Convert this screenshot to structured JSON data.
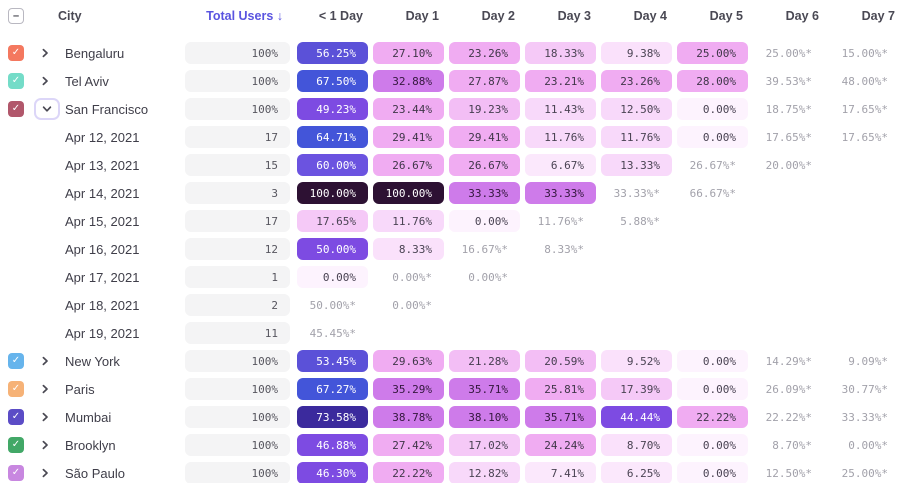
{
  "header": {
    "select_all_glyph": "–",
    "columns": {
      "city": "City",
      "total": "Total Users ↓",
      "days": [
        "< 1 Day",
        "Day 1",
        "Day 2",
        "Day 3",
        "Day 4",
        "Day 5",
        "Day 6",
        "Day 7"
      ]
    }
  },
  "checkmark_glyph": "✓",
  "colors": {
    "sorted_header": "#5a54e0",
    "muted_text": "#a2a1aa",
    "total_pill_bg": "#f4f4f5"
  },
  "scale": [
    {
      "max": 2,
      "bg": "#fdf3fe",
      "fg": "#4a4353"
    },
    {
      "max": 7.5,
      "bg": "#fbe8fc",
      "fg": "#4a4353"
    },
    {
      "max": 10,
      "bg": "#fae1fb",
      "fg": "#4a4353"
    },
    {
      "max": 14,
      "bg": "#f8d9fa",
      "fg": "#4a4353"
    },
    {
      "max": 19,
      "bg": "#f5c9f7",
      "fg": "#4a4353"
    },
    {
      "max": 21.5,
      "bg": "#f3bef5",
      "fg": "#453d4f"
    },
    {
      "max": 30,
      "bg": "#f0acf2",
      "fg": "#3f3648"
    },
    {
      "max": 41,
      "bg": "#ce7bea",
      "fg": "#33173d"
    },
    {
      "max": 52,
      "bg": "#7d4be2",
      "fg": "#ffffff"
    },
    {
      "max": 58,
      "bg": "#5b51d8",
      "fg": "#ffffff"
    },
    {
      "max": 62,
      "bg": "#6b53e0",
      "fg": "#ffffff"
    },
    {
      "max": 70,
      "bg": "#4355d9",
      "fg": "#ffffff"
    },
    {
      "max": 85,
      "bg": "#3b2a9d",
      "fg": "#ffffff"
    },
    {
      "max": 100,
      "bg": "#2d1133",
      "fg": "#ffffff"
    }
  ],
  "rows": [
    {
      "type": "city",
      "name": "Bengaluru",
      "checkbox": "#f4785f",
      "expanded": false,
      "total": "100%",
      "cells": [
        "56.25%",
        "27.10%",
        "23.26%",
        "18.33%",
        "9.38%",
        "25.00%",
        "25.00%*",
        "15.00%*"
      ]
    },
    {
      "type": "city",
      "name": "Tel Aviv",
      "checkbox": "#74dcc8",
      "expanded": false,
      "total": "100%",
      "cells": [
        "67.50%",
        "32.88%",
        "27.87%",
        "23.21%",
        "23.26%",
        "28.00%",
        "39.53%*",
        "48.00%*"
      ]
    },
    {
      "type": "city",
      "name": "San Francisco",
      "checkbox": "#b1576b",
      "expanded": true,
      "total": "100%",
      "cells": [
        "49.23%",
        "23.44%",
        "19.23%",
        "11.43%",
        "12.50%",
        "0.00%",
        "18.75%*",
        "17.65%*"
      ]
    },
    {
      "type": "date",
      "name": "Apr 12, 2021",
      "total": "17",
      "cells": [
        "64.71%",
        "29.41%",
        "29.41%",
        "11.76%",
        "11.76%",
        "0.00%",
        "17.65%*",
        "17.65%*"
      ]
    },
    {
      "type": "date",
      "name": "Apr 13, 2021",
      "total": "15",
      "cells": [
        "60.00%",
        "26.67%",
        "26.67%",
        "6.67%",
        "13.33%",
        "26.67%*",
        "20.00%*",
        ""
      ]
    },
    {
      "type": "date",
      "name": "Apr 14, 2021",
      "total": "3",
      "cells": [
        "100.00%",
        "100.00%",
        "33.33%",
        "33.33%",
        "33.33%*",
        "66.67%*",
        "",
        ""
      ]
    },
    {
      "type": "date",
      "name": "Apr 15, 2021",
      "total": "17",
      "cells": [
        "17.65%",
        "11.76%",
        "0.00%",
        "11.76%*",
        "5.88%*",
        "",
        "",
        ""
      ]
    },
    {
      "type": "date",
      "name": "Apr 16, 2021",
      "total": "12",
      "cells": [
        "50.00%",
        "8.33%",
        "16.67%*",
        "8.33%*",
        "",
        "",
        "",
        ""
      ]
    },
    {
      "type": "date",
      "name": "Apr 17, 2021",
      "total": "1",
      "cells": [
        "0.00%",
        "0.00%*",
        "0.00%*",
        "",
        "",
        "",
        "",
        ""
      ]
    },
    {
      "type": "date",
      "name": "Apr 18, 2021",
      "total": "2",
      "cells": [
        "50.00%*",
        "0.00%*",
        "",
        "",
        "",
        "",
        "",
        ""
      ]
    },
    {
      "type": "date",
      "name": "Apr 19, 2021",
      "total": "11",
      "cells": [
        "45.45%*",
        "",
        "",
        "",
        "",
        "",
        "",
        ""
      ]
    },
    {
      "type": "city",
      "name": "New York",
      "checkbox": "#66b4ec",
      "expanded": false,
      "total": "100%",
      "cells": [
        "53.45%",
        "29.63%",
        "21.28%",
        "20.59%",
        "9.52%",
        "0.00%",
        "14.29%*",
        "9.09%*"
      ]
    },
    {
      "type": "city",
      "name": "Paris",
      "checkbox": "#f6b277",
      "expanded": false,
      "total": "100%",
      "cells": [
        "67.27%",
        "35.29%",
        "35.71%",
        "25.81%",
        "17.39%",
        "0.00%",
        "26.09%*",
        "30.77%*"
      ]
    },
    {
      "type": "city",
      "name": "Mumbai",
      "checkbox": "#5b4cc6",
      "expanded": false,
      "total": "100%",
      "cells": [
        "73.58%",
        "38.78%",
        "38.10%",
        "35.71%",
        "44.44%",
        "22.22%",
        "22.22%*",
        "33.33%*"
      ]
    },
    {
      "type": "city",
      "name": "Brooklyn",
      "checkbox": "#42a867",
      "expanded": false,
      "total": "100%",
      "cells": [
        "46.88%",
        "27.42%",
        "17.02%",
        "24.24%",
        "8.70%",
        "0.00%",
        "8.70%*",
        "0.00%*"
      ]
    },
    {
      "type": "city",
      "name": "São Paulo",
      "checkbox": "#c887e0",
      "expanded": false,
      "total": "100%",
      "cells": [
        "46.30%",
        "22.22%",
        "12.82%",
        "7.41%",
        "6.25%",
        "0.00%",
        "12.50%*",
        "25.00%*"
      ]
    }
  ]
}
